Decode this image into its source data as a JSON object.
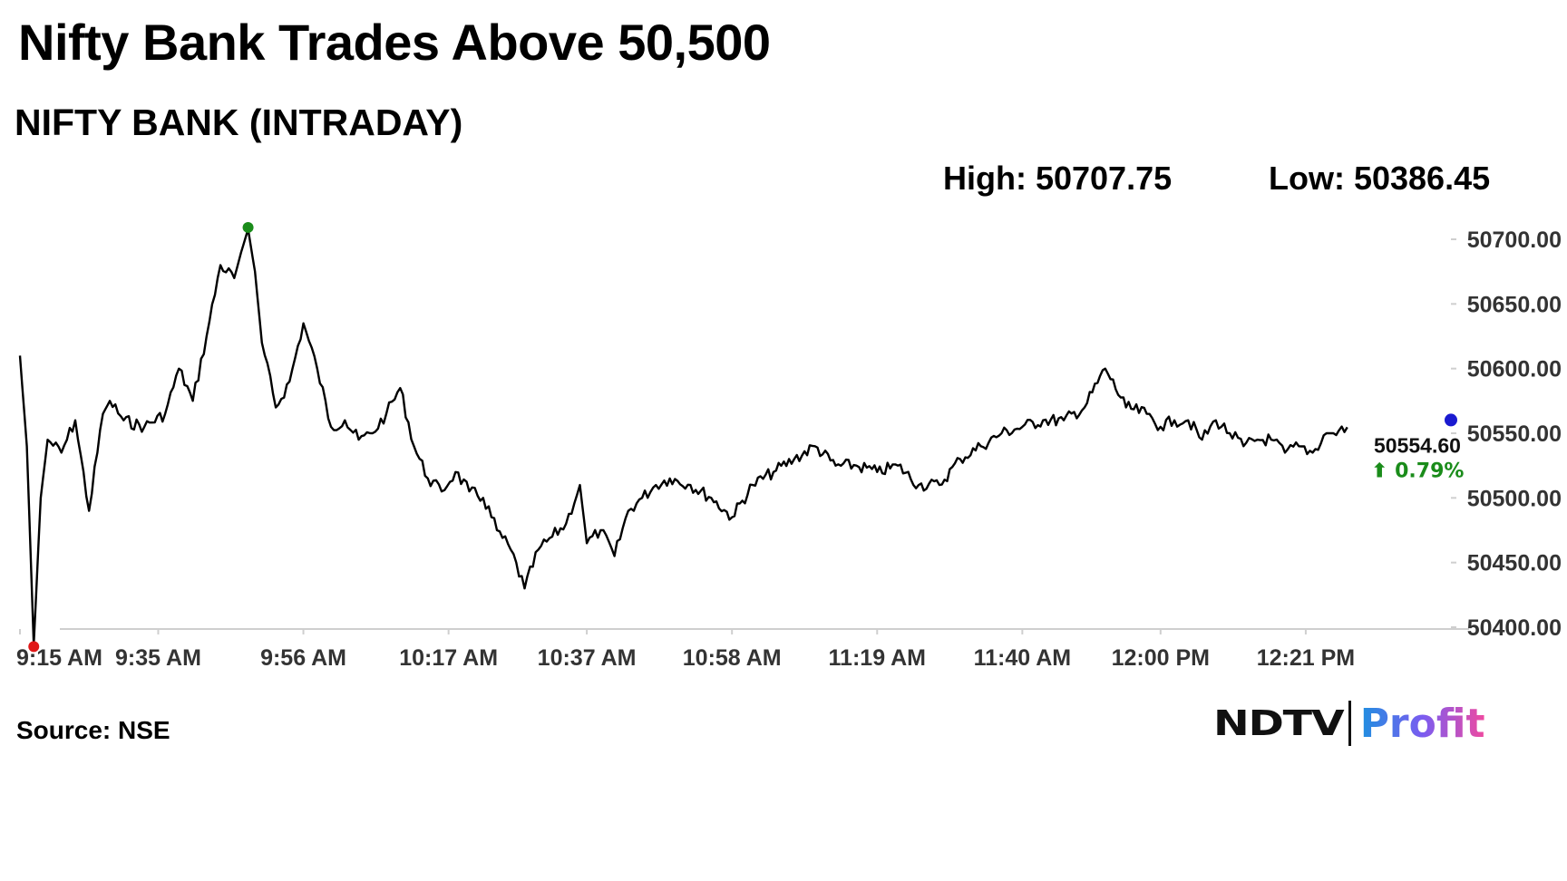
{
  "header": {
    "title": "Nifty Bank Trades Above 50,500",
    "subtitle": "NIFTY BANK (INTRADAY)",
    "high_label": "High: 50707.75",
    "low_label": "Low: 50386.45"
  },
  "footer": {
    "source": "Source: NSE",
    "logo_left": "NDTV",
    "logo_right": "Profit"
  },
  "colors": {
    "line": "#000000",
    "high_marker": "#1a8c1a",
    "low_marker": "#e01818",
    "last_marker": "#1a1ad0",
    "change_up": "#1a8c1a",
    "axis": "#cfcfcf"
  },
  "chart_data": {
    "type": "line",
    "series": [
      {
        "x": [
          "9:15",
          "9:16",
          "9:17",
          "9:18",
          "9:19",
          "9:21",
          "9:23",
          "9:25",
          "9:27",
          "9:28",
          "9:30",
          "9:33",
          "9:36",
          "9:38",
          "9:40",
          "9:42",
          "9:44",
          "9:46",
          "9:47",
          "9:48",
          "9:49",
          "9:50",
          "9:52",
          "9:54",
          "9:56",
          "9:58",
          "10:00",
          "10:02",
          "10:04",
          "10:06",
          "10:08",
          "10:10",
          "10:12",
          "10:14",
          "10:16",
          "10:18",
          "10:20",
          "10:22",
          "10:24",
          "10:26",
          "10:28",
          "10:30",
          "10:32",
          "10:34",
          "10:36",
          "10:37",
          "10:39",
          "10:41",
          "10:43",
          "10:45",
          "10:47",
          "10:49",
          "10:52",
          "10:55",
          "10:58",
          "11:01",
          "11:04",
          "11:07",
          "11:10",
          "11:13",
          "11:16",
          "11:19",
          "11:22",
          "11:25",
          "11:28",
          "11:31",
          "11:34",
          "11:37",
          "11:40",
          "11:43",
          "11:46",
          "11:49",
          "11:52",
          "11:55",
          "11:58",
          "12:00",
          "12:02",
          "12:04",
          "12:06",
          "12:08",
          "12:10",
          "12:12",
          "12:14",
          "12:16",
          "12:18",
          "12:20",
          "12:22",
          "12:24",
          "12:25",
          "12:27"
        ],
        "y": [
          50610,
          50540,
          50386.45,
          50500,
          50545,
          50535,
          50560,
          50490,
          50565,
          50575,
          50560,
          50555,
          50565,
          50600,
          50575,
          50625,
          50680,
          50670,
          50690,
          50707.75,
          50675,
          50620,
          50570,
          50590,
          50635,
          50600,
          50555,
          50560,
          50545,
          50550,
          50565,
          50585,
          50540,
          50515,
          50505,
          50520,
          50505,
          50500,
          50475,
          50460,
          50430,
          50460,
          50470,
          50480,
          50510,
          50465,
          50475,
          50455,
          50490,
          50500,
          50510,
          50515,
          50510,
          50500,
          50485,
          50510,
          50520,
          50530,
          50540,
          50525,
          50525,
          50520,
          50525,
          50510,
          50510,
          50530,
          50540,
          50550,
          50555,
          50560,
          50560,
          50570,
          50600,
          50570,
          50565,
          50555,
          50560,
          50560,
          50545,
          50560,
          50550,
          50540,
          50545,
          50545,
          50535,
          50540,
          50535,
          50550,
          50550,
          50554.6
        ]
      }
    ],
    "x_ticks": [
      "9:15 AM",
      "9:35 AM",
      "9:56 AM",
      "10:17 AM",
      "10:37 AM",
      "10:58 AM",
      "11:19 AM",
      "11:40 AM",
      "12:00 PM",
      "12:21 PM"
    ],
    "y_ticks": [
      "50700.00",
      "50650.00",
      "50600.00",
      "50550.00",
      "50500.00",
      "50450.00",
      "50400.00"
    ],
    "ylim": [
      50400,
      50700
    ],
    "high": 50707.75,
    "low": 50386.45,
    "last_value_label": "50554.60",
    "change_label": "⬆ 0.79%",
    "grid": false
  }
}
